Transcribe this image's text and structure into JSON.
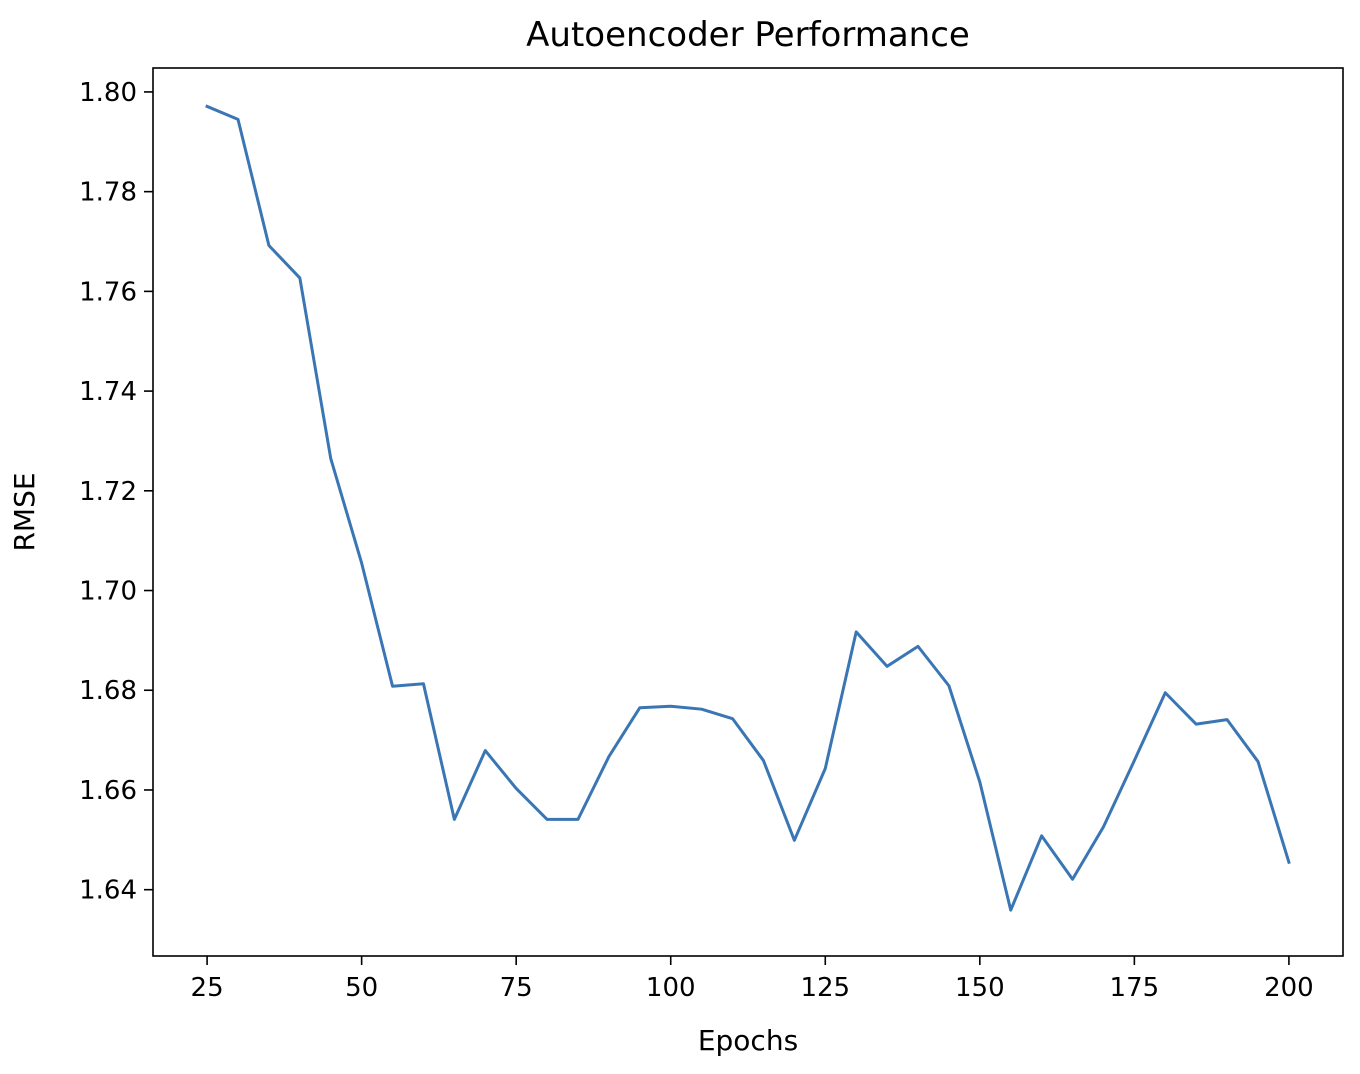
{
  "chart_data": {
    "type": "line",
    "title": "Autoencoder Performance",
    "xlabel": "Epochs",
    "ylabel": "RMSE",
    "xlim": [
      16.25,
      208.75
    ],
    "ylim": [
      1.6267,
      1.8048
    ],
    "xticks": [
      25,
      50,
      75,
      100,
      125,
      150,
      175,
      200
    ],
    "xtick_labels": [
      "25",
      "50",
      "75",
      "100",
      "125",
      "150",
      "175",
      "200"
    ],
    "yticks": [
      1.64,
      1.66,
      1.68,
      1.7,
      1.72,
      1.74,
      1.76,
      1.78,
      1.8
    ],
    "ytick_labels": [
      "1.64",
      "1.66",
      "1.68",
      "1.70",
      "1.72",
      "1.74",
      "1.76",
      "1.78",
      "1.80"
    ],
    "grid": false,
    "series": [
      {
        "color": "#3a76b4",
        "x": [
          25,
          30,
          35,
          40,
          45,
          50,
          55,
          60,
          65,
          70,
          75,
          80,
          85,
          90,
          95,
          100,
          105,
          110,
          115,
          120,
          125,
          130,
          135,
          140,
          145,
          150,
          155,
          160,
          165,
          170,
          175,
          180,
          185,
          190,
          195,
          200
        ],
        "y": [
          1.7971,
          1.7945,
          1.7692,
          1.7627,
          1.7265,
          1.7055,
          1.6808,
          1.6813,
          1.6541,
          1.6679,
          1.6603,
          1.6541,
          1.6541,
          1.6667,
          1.6765,
          1.6768,
          1.6762,
          1.6743,
          1.6659,
          1.6499,
          1.6643,
          1.6917,
          1.6848,
          1.6888,
          1.6809,
          1.6616,
          1.6359,
          1.6508,
          1.6421,
          1.6526,
          1.6659,
          1.6795,
          1.6732,
          1.6741,
          1.6657,
          1.6455
        ]
      }
    ]
  }
}
